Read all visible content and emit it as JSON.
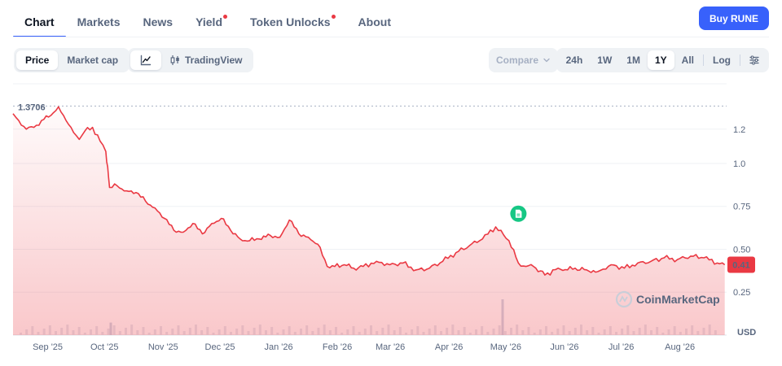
{
  "tabs": [
    {
      "label": "Chart",
      "active": true,
      "dot": false
    },
    {
      "label": "Markets",
      "active": false,
      "dot": false
    },
    {
      "label": "News",
      "active": false,
      "dot": false
    },
    {
      "label": "Yield",
      "active": false,
      "dot": true
    },
    {
      "label": "Token Unlocks",
      "active": false,
      "dot": true
    },
    {
      "label": "About",
      "active": false,
      "dot": false
    }
  ],
  "buy_button": "Buy RUNE",
  "toolbar": {
    "price": "Price",
    "market_cap": "Market cap",
    "line_icon": "line-chart-icon",
    "tradingview": "TradingView",
    "tradingview_icon": "candlestick-icon",
    "compare": "Compare",
    "ranges": [
      "24h",
      "1W",
      "1M",
      "1Y",
      "All"
    ],
    "selected_range": "1Y",
    "log": "Log",
    "settings_icon": "sliders-icon"
  },
  "colors": {
    "line": "#ea3943",
    "accent": "#3861fb",
    "event_marker": "#16c784"
  },
  "chart_data": {
    "type": "area",
    "currency_label": "USD",
    "high_label": "1.3706",
    "current_price_label": "0.41",
    "watermark": "CoinMarketCap",
    "x_ticks": [
      "Sep '25",
      "Oct '25",
      "Nov '25",
      "Dec '25",
      "Jan '26",
      "Feb '26",
      "Mar '26",
      "Apr '26",
      "May '26",
      "Jun '26",
      "Jul '26",
      "Aug '26"
    ],
    "y_ticks": [
      {
        "value": 1.2,
        "label": "1.2"
      },
      {
        "value": 1.0,
        "label": "1.0"
      },
      {
        "value": 0.75,
        "label": "0.75"
      },
      {
        "value": 0.5,
        "label": "0.50"
      },
      {
        "value": 0.25,
        "label": "0.25"
      }
    ],
    "ylim": [
      0.0,
      1.45
    ],
    "x_start": "2025-08-21",
    "x_end": "2026-09-02",
    "grid": true,
    "series": [
      {
        "x": [
          "2025-08-21",
          "2025-08-24",
          "2025-08-28",
          "2025-09-01",
          "2025-09-05",
          "2025-09-10",
          "2025-09-14",
          "2025-09-18",
          "2025-09-22",
          "2025-09-25",
          "2025-09-28",
          "2025-10-02",
          "2025-10-06",
          "2025-10-09",
          "2025-10-10",
          "2025-10-11",
          "2025-10-15",
          "2025-10-20",
          "2025-10-25",
          "2025-10-30",
          "2025-11-04",
          "2025-11-09",
          "2025-11-14",
          "2025-11-19",
          "2025-11-24",
          "2025-11-29",
          "2025-12-04",
          "2025-12-09",
          "2025-12-14",
          "2025-12-19",
          "2025-12-24",
          "2025-12-29",
          "2026-01-04",
          "2026-01-09",
          "2026-01-14",
          "2026-01-19",
          "2026-01-24",
          "2026-01-29",
          "2026-02-03",
          "2026-02-07",
          "2026-02-12",
          "2026-02-17",
          "2026-02-22",
          "2026-03-01",
          "2026-03-08",
          "2026-03-15",
          "2026-03-22",
          "2026-03-29",
          "2026-04-05",
          "2026-04-12",
          "2026-04-19",
          "2026-04-26",
          "2026-05-03",
          "2026-05-10",
          "2026-05-15",
          "2026-05-19",
          "2026-05-23",
          "2026-05-29",
          "2026-06-05",
          "2026-06-10",
          "2026-06-14",
          "2026-06-20",
          "2026-06-26",
          "2026-07-03",
          "2026-07-10",
          "2026-07-17",
          "2026-07-24",
          "2026-07-31",
          "2026-08-07",
          "2026-08-14",
          "2026-08-21",
          "2026-08-28",
          "2026-09-01"
        ],
        "y": [
          1.29,
          1.25,
          1.2,
          1.21,
          1.25,
          1.28,
          1.33,
          1.25,
          1.18,
          1.14,
          1.19,
          1.21,
          1.13,
          1.07,
          0.98,
          0.86,
          0.87,
          0.84,
          0.83,
          0.78,
          0.74,
          0.68,
          0.61,
          0.6,
          0.65,
          0.59,
          0.65,
          0.68,
          0.61,
          0.56,
          0.55,
          0.56,
          0.58,
          0.57,
          0.67,
          0.59,
          0.57,
          0.53,
          0.4,
          0.4,
          0.41,
          0.39,
          0.4,
          0.43,
          0.41,
          0.42,
          0.38,
          0.39,
          0.43,
          0.48,
          0.52,
          0.56,
          0.63,
          0.55,
          0.42,
          0.4,
          0.4,
          0.35,
          0.39,
          0.38,
          0.39,
          0.38,
          0.37,
          0.41,
          0.39,
          0.42,
          0.43,
          0.45,
          0.44,
          0.46,
          0.45,
          0.42,
          0.41
        ]
      }
    ],
    "volume": [
      {
        "x": "2025-10-11",
        "v": 0.35
      },
      {
        "x": "2026-05-06",
        "v": 1.0
      }
    ],
    "event_marker_date": "2026-05-15"
  }
}
